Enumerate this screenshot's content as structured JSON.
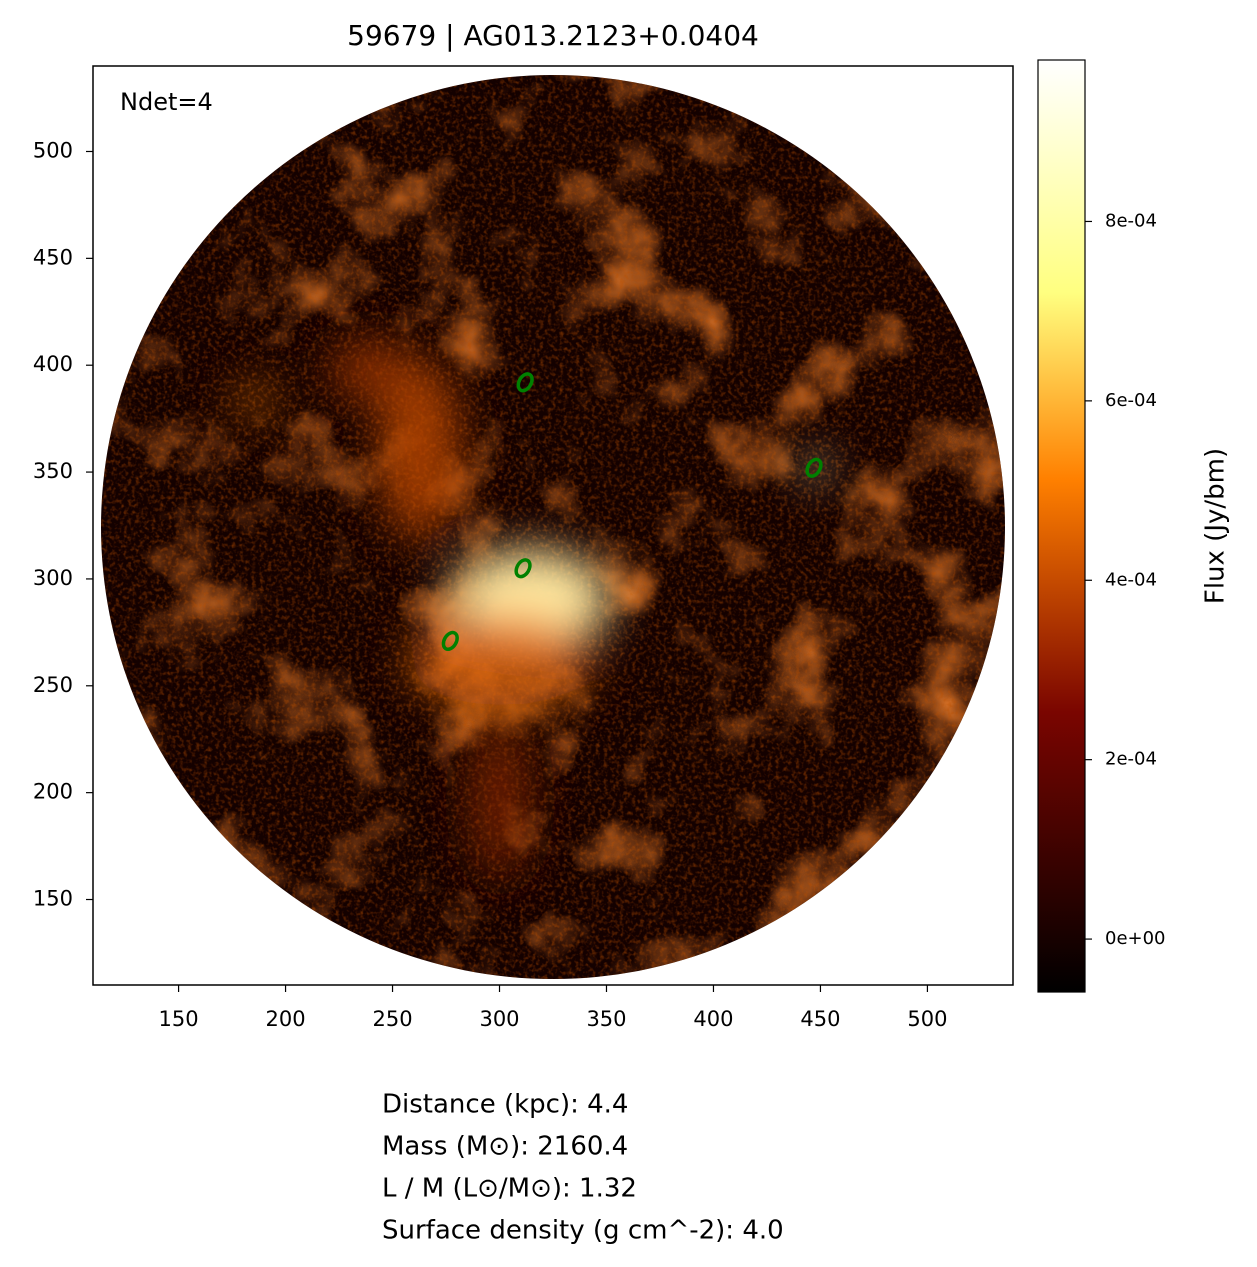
{
  "chart_data": {
    "type": "image",
    "title": "59679 | AG013.2123+0.0404",
    "annotation": "Ndet=4",
    "xlim": [
      110,
      540
    ],
    "ylim": [
      110,
      540
    ],
    "xticks": [
      150,
      200,
      250,
      300,
      350,
      400,
      450,
      500
    ],
    "yticks": [
      150,
      200,
      250,
      300,
      350,
      400,
      450,
      500
    ],
    "points": {
      "x": [
        312,
        447,
        311,
        277
      ],
      "y": [
        392,
        352,
        305,
        271
      ],
      "color": "#008000"
    },
    "colorbar": {
      "label": "Flux (Jy/bm)",
      "lim": [
        -5.9e-05,
        0.00098
      ],
      "ticks": [
        {
          "value": 0,
          "label": "0e+00"
        },
        {
          "value": 0.0002,
          "label": "2e-04"
        },
        {
          "value": 0.0004,
          "label": "4e-04"
        },
        {
          "value": 0.0006,
          "label": "6e-04"
        },
        {
          "value": 0.0008,
          "label": "8e-04"
        }
      ]
    },
    "info_lines": [
      "Distance (kpc): 4.4",
      "Mass (M⊙): 2160.4",
      "L / M (L⊙/M⊙): 1.32",
      "Surface density (g cm^-2): 4.0"
    ]
  }
}
